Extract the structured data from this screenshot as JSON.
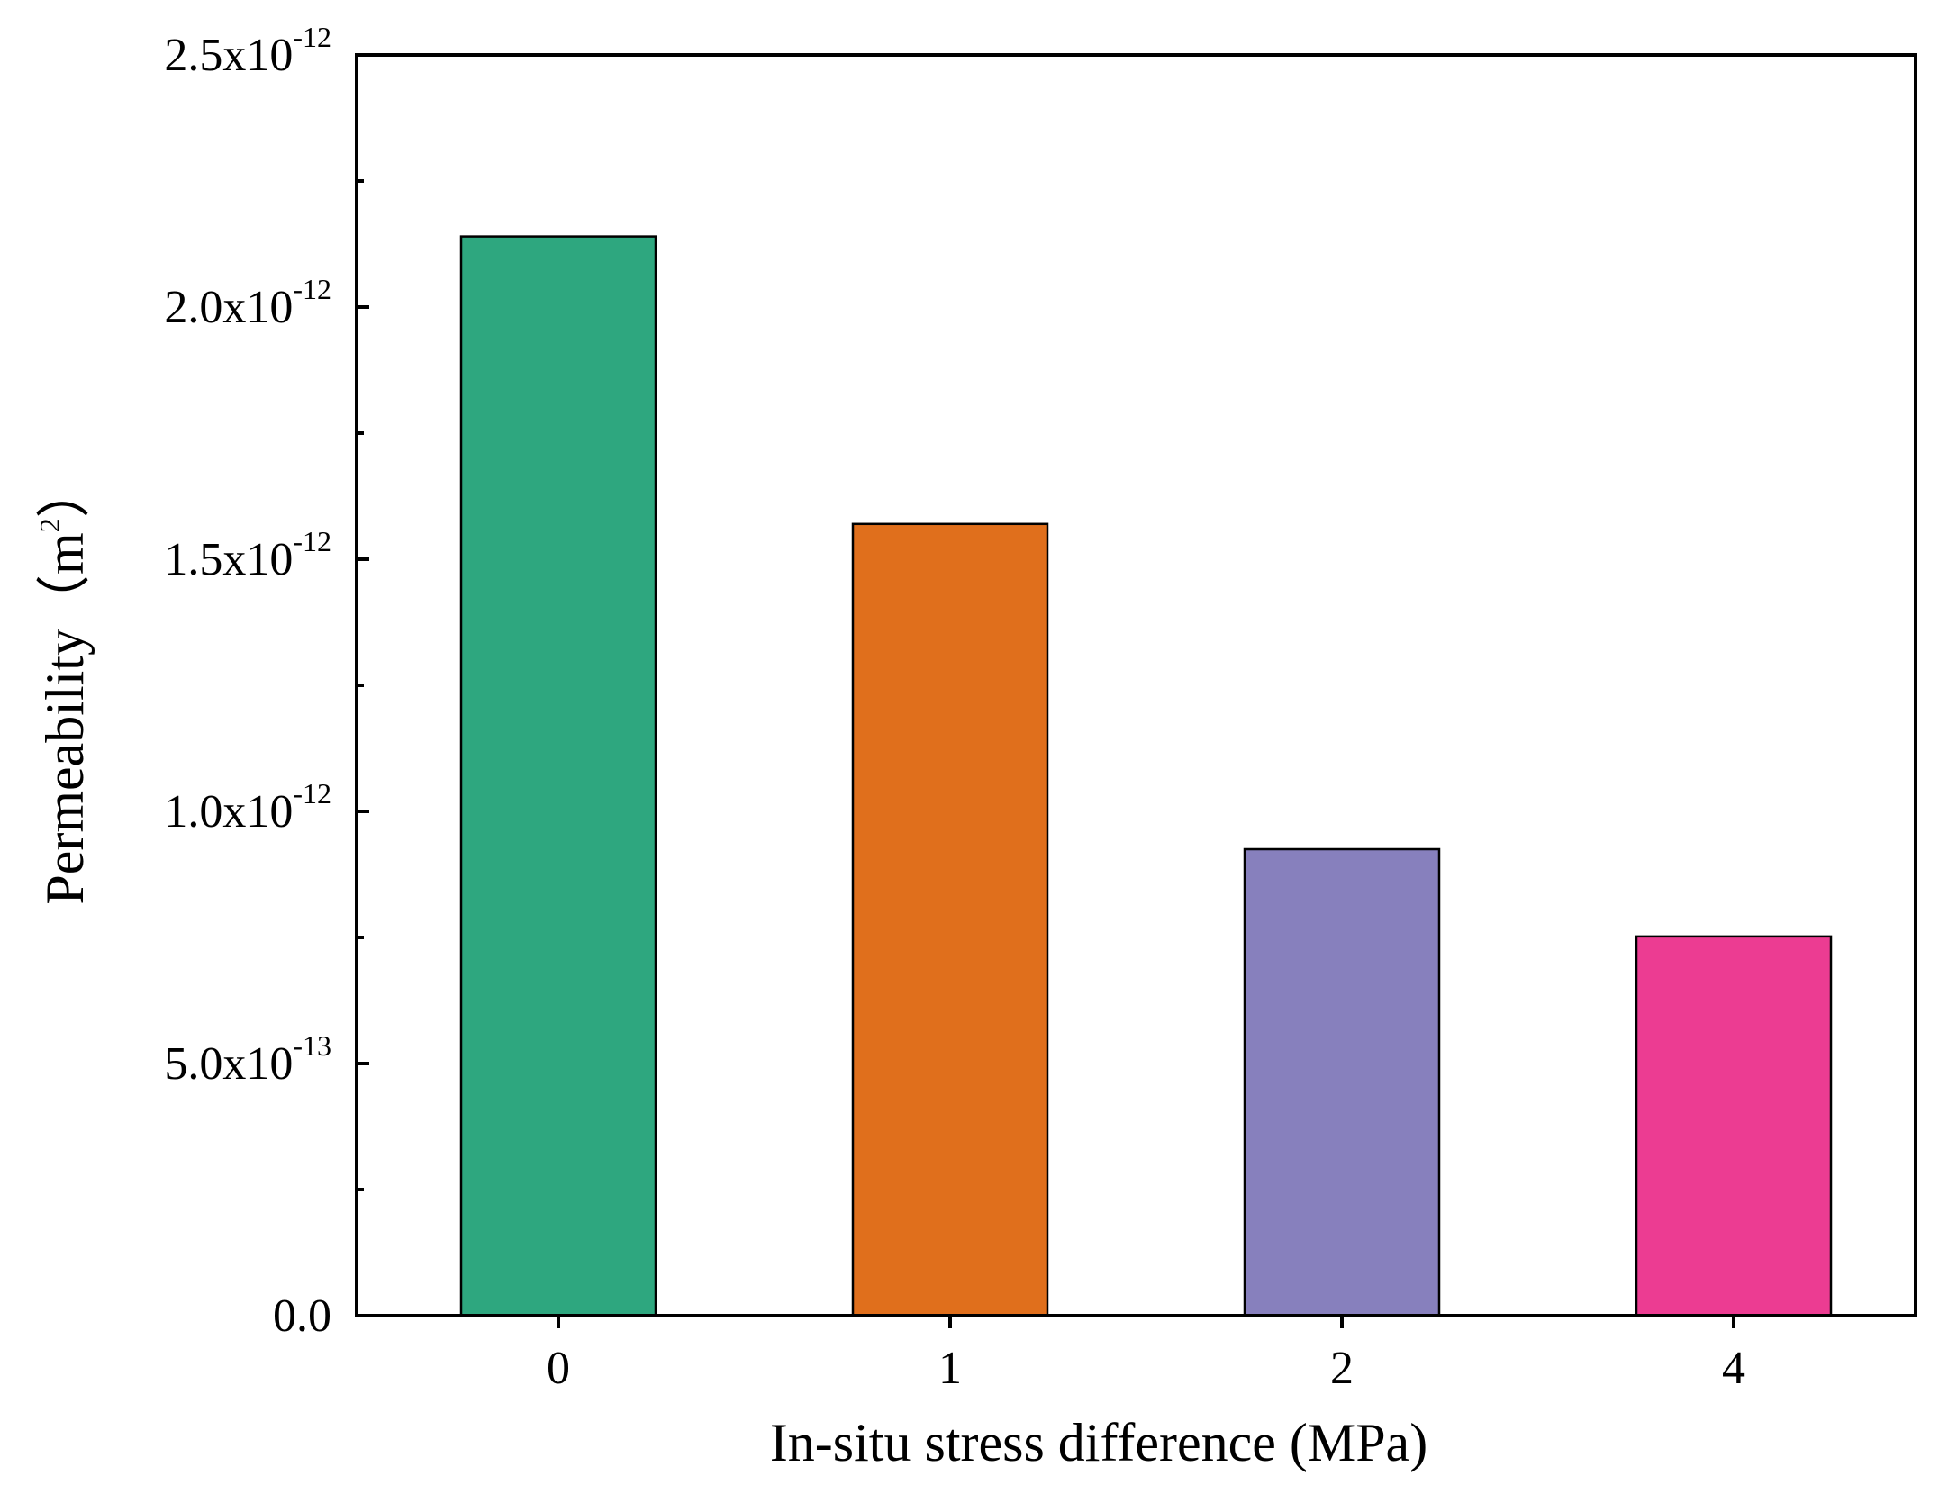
{
  "chart_data": {
    "type": "bar",
    "xlabel": "In-situ stress difference (MPa)",
    "ylabel": "Permeability（m",
    "ylabel_sup": "2",
    "ylabel_close": "）",
    "categories": [
      "0",
      "1",
      "2",
      "4"
    ],
    "values": [
      2.14e-12,
      1.57e-12,
      9.25e-13,
      7.52e-13
    ],
    "ylim": [
      0,
      2.5e-12
    ],
    "yticks": [
      {
        "value": 0,
        "mantissa": "0.0",
        "exp": ""
      },
      {
        "value": 5e-13,
        "mantissa": "5.0x10",
        "exp": "-13"
      },
      {
        "value": 1e-12,
        "mantissa": "1.0x10",
        "exp": "-12"
      },
      {
        "value": 1.5e-12,
        "mantissa": "1.5x10",
        "exp": "-12"
      },
      {
        "value": 2e-12,
        "mantissa": "2.0x10",
        "exp": "-12"
      },
      {
        "value": 2.5e-12,
        "mantissa": "2.5x10",
        "exp": "-12"
      }
    ],
    "colors": [
      "#2ea77f",
      "#e06f1c",
      "#8780bd",
      "#ec3c92"
    ],
    "grid": false,
    "legend": "none"
  }
}
